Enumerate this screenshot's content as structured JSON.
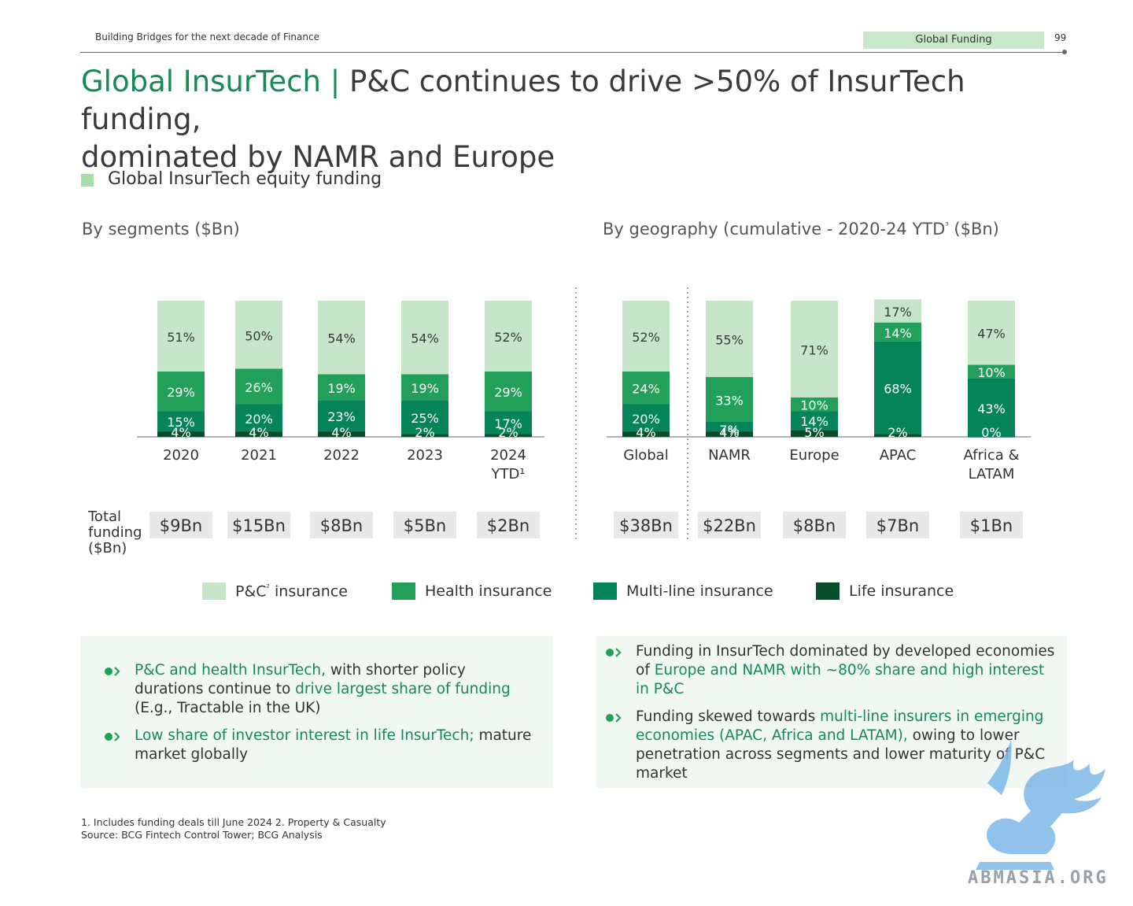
{
  "header": {
    "left_text": "Building Bridges for the next decade of Finance",
    "tag": "Global Funding",
    "page_number": "99"
  },
  "title": {
    "accent": "Global InsurTech",
    "separator": "|",
    "main_line1": " P&C continues to drive >50% of InsurTech funding,",
    "main_line2": "dominated by NAMR and Europe"
  },
  "section_label": "Global InsurTech equity funding",
  "colors": {
    "pc": "#c6e5c9",
    "health": "#22a05a",
    "multiline": "#05845a",
    "life": "#0a4d2a",
    "accent_green": "#148a55"
  },
  "chart_data": [
    {
      "type": "bar",
      "stacked": true,
      "normalized": true,
      "title": "By segments ($Bn)",
      "categories": [
        "2020",
        "2021",
        "2022",
        "2023",
        "2024"
      ],
      "category_sublabels": [
        "",
        "",
        "",
        "",
        "YTD¹"
      ],
      "series": [
        {
          "name": "P&C² insurance",
          "values": [
            51,
            50,
            54,
            54,
            52
          ],
          "labels": [
            "51%",
            "50%",
            "54%",
            "54%",
            "52%"
          ]
        },
        {
          "name": "Health insurance",
          "values": [
            29,
            26,
            19,
            19,
            29
          ],
          "labels": [
            "29%",
            "26%",
            "19%",
            "19%",
            "29%"
          ]
        },
        {
          "name": "Multi-line insurance",
          "values": [
            15,
            20,
            23,
            25,
            17
          ],
          "labels": [
            "15%",
            "20%",
            "23%",
            "25%",
            "17%"
          ]
        },
        {
          "name": "Life insurance",
          "values": [
            4,
            4,
            4,
            2,
            2
          ],
          "labels": [
            "4%",
            "4%",
            "4%",
            "2%",
            "2%"
          ]
        }
      ],
      "totals": [
        "$9Bn",
        "$15Bn",
        "$8Bn",
        "$5Bn",
        "$2Bn"
      ],
      "ylim": [
        0,
        100
      ]
    },
    {
      "type": "bar",
      "stacked": true,
      "normalized": true,
      "title": "By geography (cumulative - 2020-24 YTD³ ($Bn)",
      "categories": [
        "Global",
        "NAMR",
        "Europe",
        "APAC",
        "Africa &"
      ],
      "category_sublabels": [
        "",
        "",
        "",
        "",
        "LATAM"
      ],
      "series": [
        {
          "name": "P&C² insurance",
          "values": [
            52,
            55,
            71,
            17,
            47
          ],
          "labels": [
            "52%",
            "55%",
            "71%",
            "17%",
            "47%"
          ]
        },
        {
          "name": "Health insurance",
          "values": [
            24,
            33,
            10,
            14,
            10
          ],
          "labels": [
            "24%",
            "33%",
            "10%",
            "14%",
            "10%"
          ]
        },
        {
          "name": "Multi-line insurance",
          "values": [
            20,
            7,
            14,
            68,
            43
          ],
          "labels": [
            "20%",
            "7%",
            "14%",
            "68%",
            "43%"
          ]
        },
        {
          "name": "Life insurance",
          "values": [
            4,
            4,
            5,
            2,
            0
          ],
          "labels": [
            "4%",
            "4%",
            "5%",
            "2%",
            "0%"
          ]
        }
      ],
      "totals": [
        "$38Bn",
        "$22Bn",
        "$8Bn",
        "$7Bn",
        "$1Bn"
      ],
      "ylim": [
        0,
        100
      ]
    }
  ],
  "total_funding_label": "Total funding ($Bn)",
  "legend": [
    {
      "label": "P&C² insurance",
      "color": "#c6e5c9"
    },
    {
      "label": "Health insurance",
      "color": "#22a05a"
    },
    {
      "label": "Multi-line insurance",
      "color": "#05845a"
    },
    {
      "label": "Life insurance",
      "color": "#0a4d2a"
    }
  ],
  "insights_left": [
    {
      "parts": [
        {
          "text": "P&C and health InsurTech,",
          "green": true
        },
        {
          "text": " with shorter policy durations continue to ",
          "green": false
        },
        {
          "text": "drive largest share of funding",
          "green": true
        },
        {
          "text": " (E.g., Tractable in the UK)",
          "green": false
        }
      ]
    },
    {
      "parts": [
        {
          "text": "Low share of investor interest in life InsurTech;",
          "green": true
        },
        {
          "text": " mature market globally",
          "green": false
        }
      ]
    }
  ],
  "insights_right": [
    {
      "parts": [
        {
          "text": "Funding in InsurTech dominated by developed economies of ",
          "green": false
        },
        {
          "text": "Europe and NAMR with ~80% share and high interest in P&C",
          "green": true
        }
      ]
    },
    {
      "parts": [
        {
          "text": "Funding skewed towards ",
          "green": false
        },
        {
          "text": "multi-line insurers in emerging economies (APAC, Africa and LATAM),",
          "green": true
        },
        {
          "text": " owing to lower penetration across segments and lower maturity of P&C market",
          "green": false
        }
      ]
    }
  ],
  "footnotes": {
    "line1": "1. Includes funding deals till June 2024 2. Property & Casualty",
    "line2": "Source: BCG Fintech Control Tower; BCG Analysis"
  },
  "watermark": {
    "text": "ABMASIA.ORG",
    "icon": "griffin-logo-icon"
  }
}
